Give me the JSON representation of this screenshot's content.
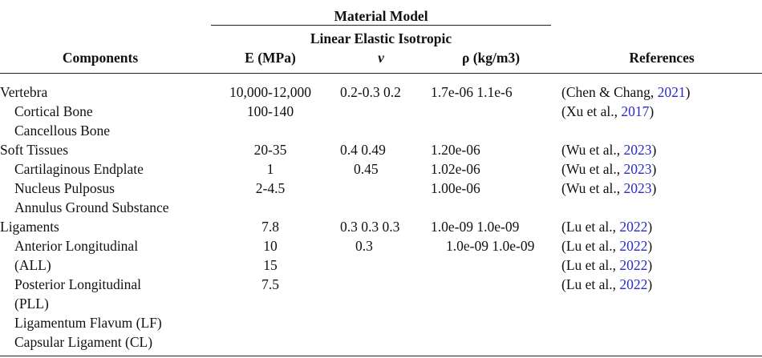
{
  "header": {
    "group_title": "Material Model",
    "model": "Linear Elastic Isotropic",
    "columns": {
      "component": "Components",
      "e": "E (MPa)",
      "nu": "ν",
      "rho": "ρ (kg/m3)",
      "ref": "References"
    }
  },
  "groups": [
    {
      "name": "Vertebra",
      "e": "10,000-12,000",
      "nu": "0.2-0.3 0.2",
      "rho": "1.7e-06 1.1e-6",
      "ref": {
        "prefix": "(Chen & Chang, ",
        "year": "2021",
        "suffix": ")"
      },
      "rows": [
        {
          "name": "Cortical Bone",
          "e": "100-140",
          "ref": {
            "prefix": "(Xu et al., ",
            "year": "2017",
            "suffix": ")"
          }
        },
        {
          "name": "Cancellous Bone"
        }
      ]
    },
    {
      "name": "Soft Tissues",
      "e": "20-35",
      "nu": "0.4 0.49",
      "rho": "1.20e-06",
      "ref": {
        "prefix": "(Wu et al., ",
        "year": "2023",
        "suffix": ")"
      },
      "rows": [
        {
          "name": "Cartilaginous Endplate",
          "e": "1",
          "nu": "0.45",
          "rho": "1.02e-06",
          "ref": {
            "prefix": "(Wu et al., ",
            "year": "2023",
            "suffix": ")"
          }
        },
        {
          "name": "Nucleus Pulposus",
          "e": "2-4.5",
          "rho": "1.00e-06",
          "ref": {
            "prefix": "(Wu et al., ",
            "year": "2023",
            "suffix": ")"
          }
        },
        {
          "name": "Annulus Ground Substance"
        }
      ]
    },
    {
      "name": "Ligaments",
      "e": "7.8",
      "nu": "0.3 0.3 0.3",
      "rho": "1.0e-09 1.0e-09",
      "ref": {
        "prefix": "(Lu et al., ",
        "year": "2022",
        "suffix": ")"
      },
      "rows": [
        {
          "name": "Anterior Longitudinal",
          "e": "10",
          "nu": "0.3",
          "rho": "1.0e-09 1.0e-09",
          "ref": {
            "prefix": "(Lu et al., ",
            "year": "2022",
            "suffix": ")"
          }
        },
        {
          "name": "(ALL)",
          "e": "15",
          "ref": {
            "prefix": "(Lu et al., ",
            "year": "2022",
            "suffix": ")"
          }
        },
        {
          "name": "Posterior Longitudinal",
          "e": "7.5",
          "ref": {
            "prefix": "(Lu et al., ",
            "year": "2022",
            "suffix": ")"
          }
        },
        {
          "name": "(PLL)"
        },
        {
          "name": "Ligamentum Flavum (LF)"
        },
        {
          "name": "Capsular Ligament (CL)"
        }
      ]
    }
  ]
}
